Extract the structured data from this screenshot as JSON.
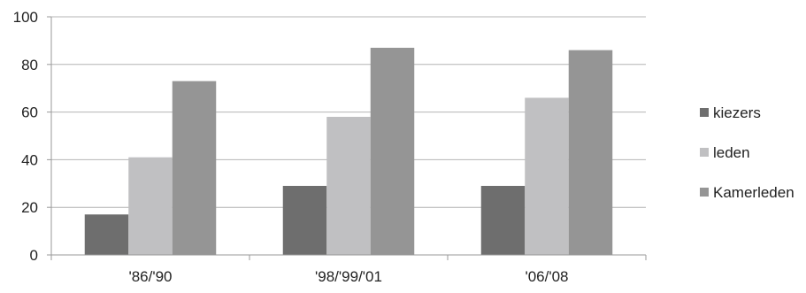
{
  "chart_data": {
    "type": "bar",
    "title": "",
    "xlabel": "",
    "ylabel": "",
    "categories": [
      "'86/'90",
      "'98/'99/'01",
      "'06/'08"
    ],
    "ylim": [
      0,
      100
    ],
    "yticks": [
      0,
      20,
      40,
      60,
      80,
      100
    ],
    "grid": true,
    "legend_position": "right",
    "series": [
      {
        "name": "kiezers",
        "values": [
          17,
          29,
          29
        ],
        "color": "#6e6e6e"
      },
      {
        "name": "leden",
        "values": [
          41,
          58,
          66
        ],
        "color": "#c0c0c2"
      },
      {
        "name": "Kamerleden",
        "values": [
          73,
          87,
          86
        ],
        "color": "#959595"
      }
    ]
  }
}
